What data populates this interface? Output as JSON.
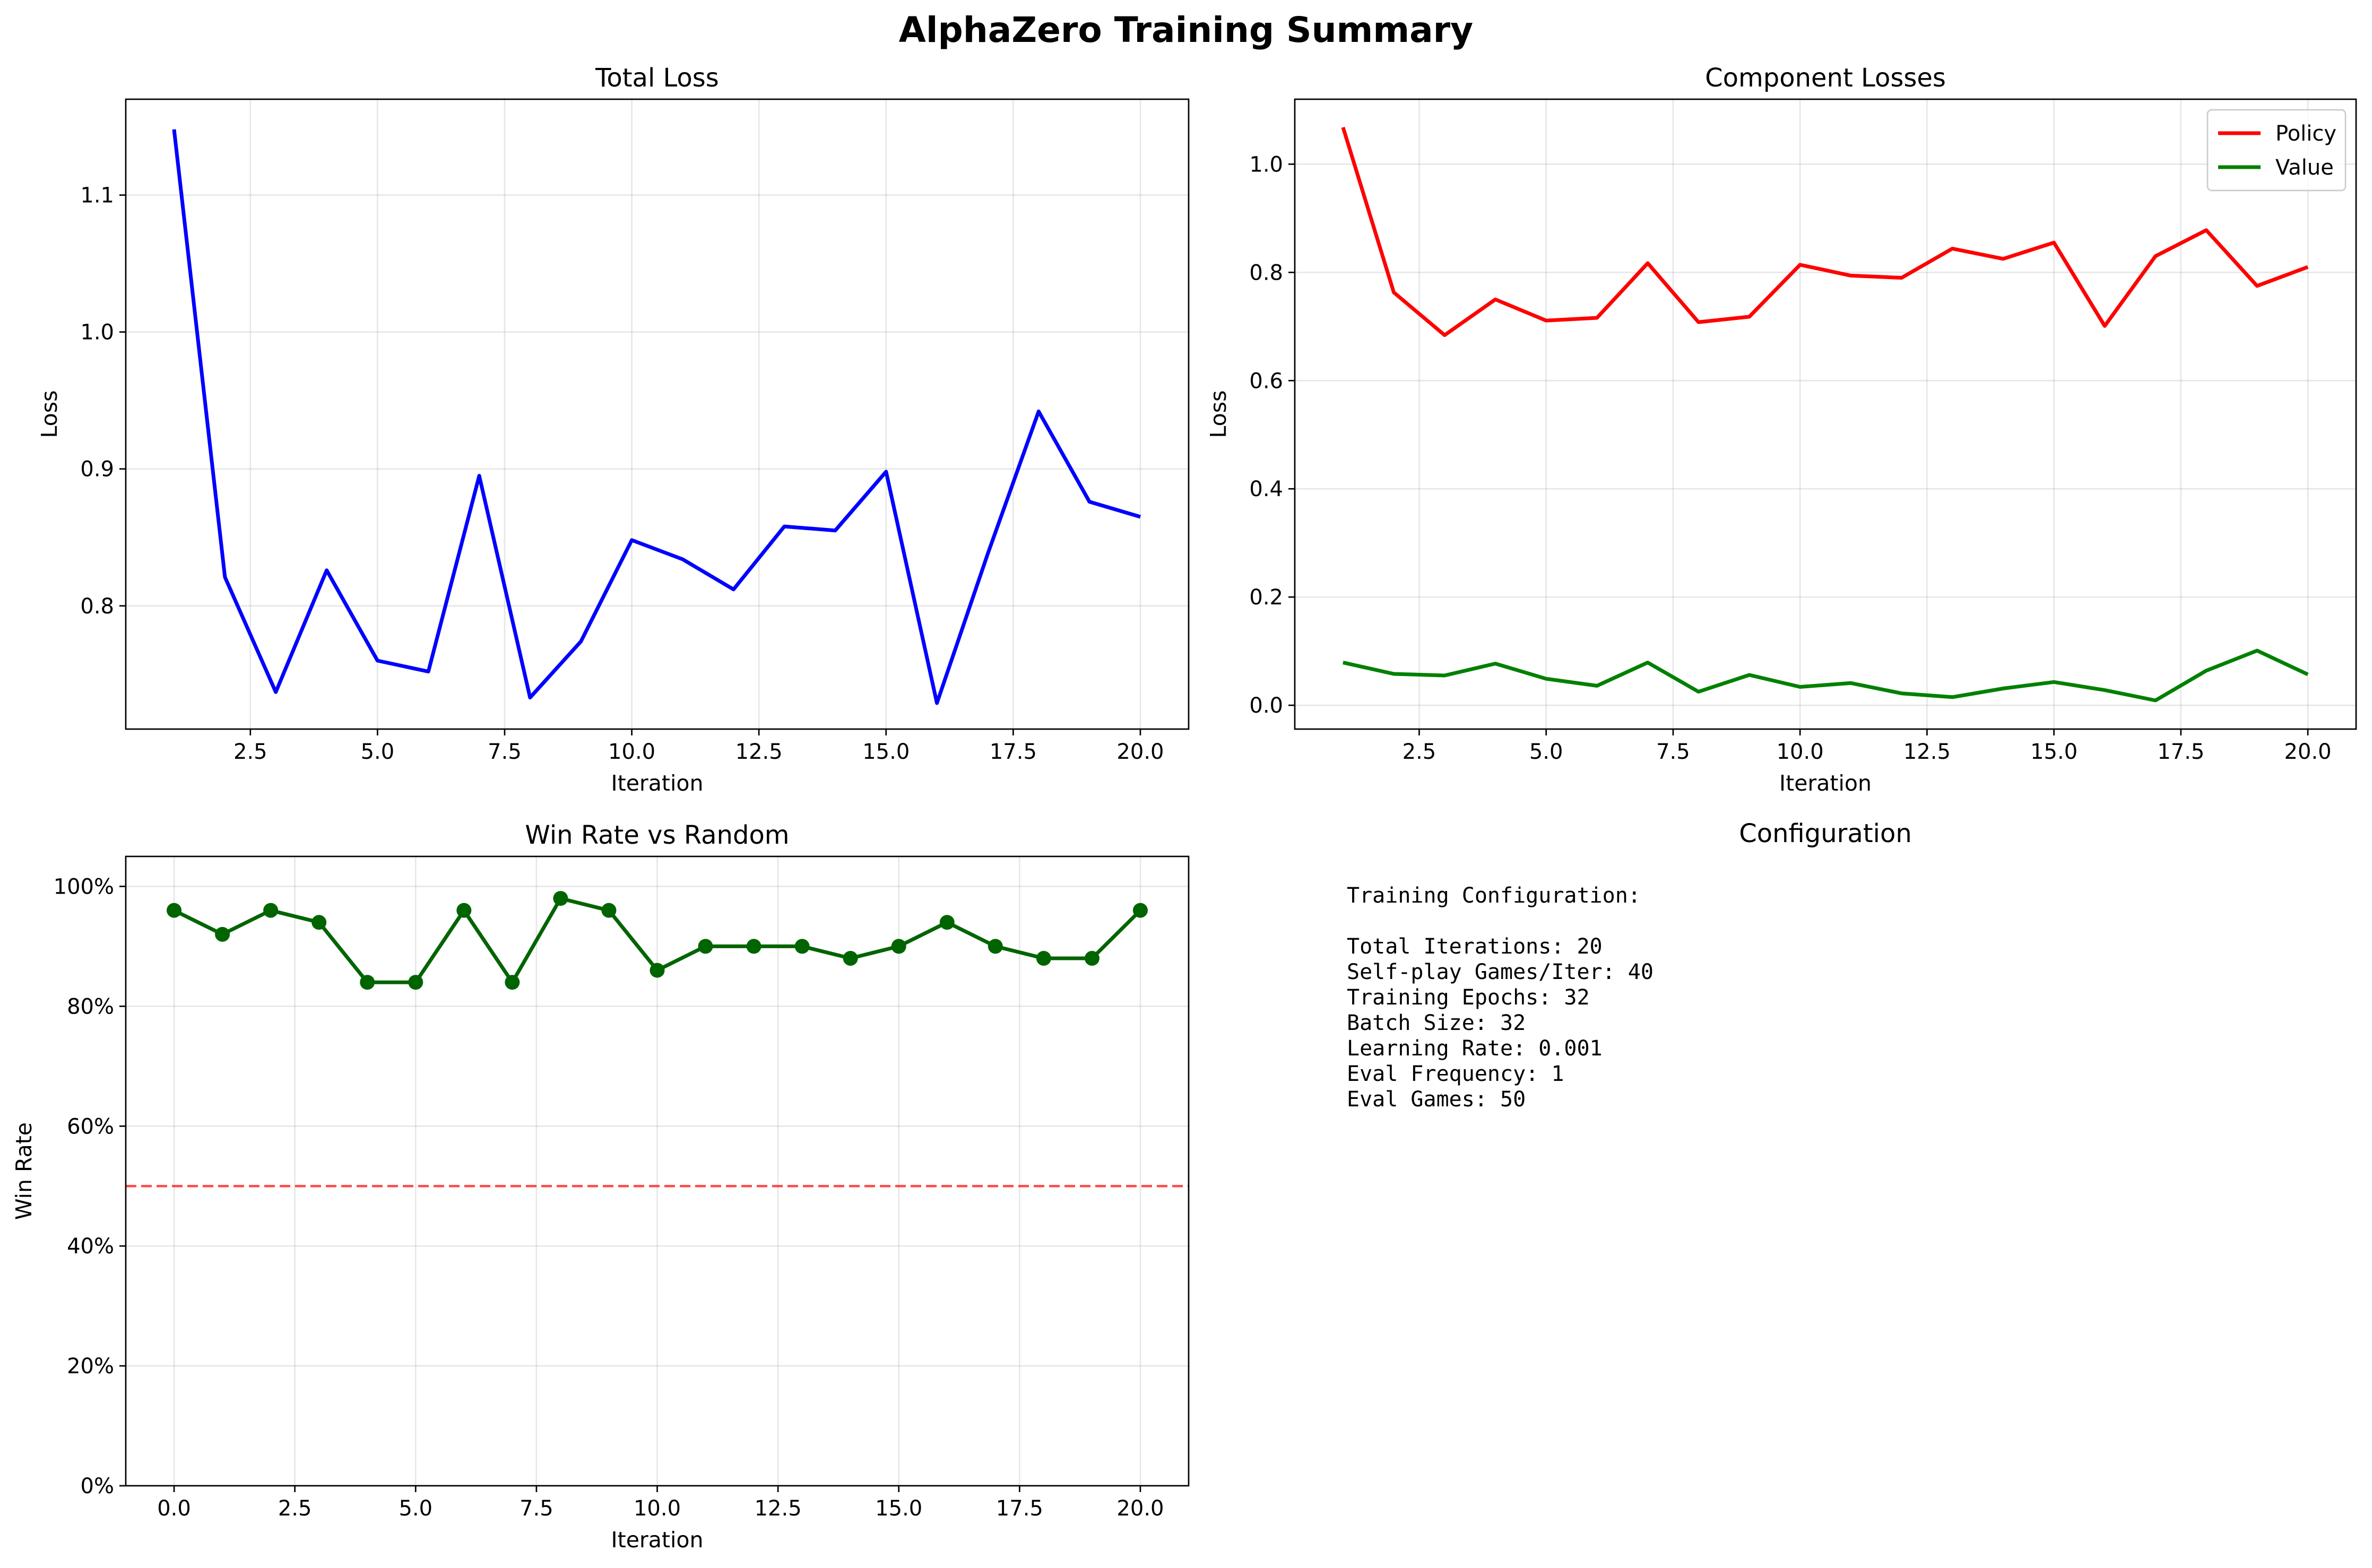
{
  "figure": {
    "suptitle": "AlphaZero Training Summary"
  },
  "chart_data": [
    {
      "id": "total_loss",
      "type": "line",
      "title": "Total Loss",
      "xlabel": "Iteration",
      "ylabel": "Loss",
      "xlim": [
        0.05,
        20.95
      ],
      "ylim": [
        0.71,
        1.17
      ],
      "xticks": [
        2.5,
        5.0,
        7.5,
        10.0,
        12.5,
        15.0,
        17.5,
        20.0
      ],
      "xtick_labels": [
        "2.5",
        "5.0",
        "7.5",
        "10.0",
        "12.5",
        "15.0",
        "17.5",
        "20.0"
      ],
      "yticks": [
        0.8,
        0.9,
        1.0,
        1.1
      ],
      "ytick_labels": [
        "0.8",
        "0.9",
        "1.0",
        "1.1"
      ],
      "grid": true,
      "x": [
        1,
        2,
        3,
        4,
        5,
        6,
        7,
        8,
        9,
        10,
        11,
        12,
        13,
        14,
        15,
        16,
        17,
        18,
        19,
        20
      ],
      "series": [
        {
          "color": "#0000ff",
          "values": [
            1.148,
            0.821,
            0.737,
            0.826,
            0.76,
            0.752,
            0.895,
            0.733,
            0.774,
            0.848,
            0.834,
            0.812,
            0.858,
            0.855,
            0.898,
            0.729,
            0.838,
            0.942,
            0.876,
            0.865
          ]
        }
      ]
    },
    {
      "id": "component_losses",
      "type": "line",
      "title": "Component Losses",
      "xlabel": "Iteration",
      "ylabel": "Loss",
      "xlim": [
        0.05,
        20.95
      ],
      "ylim": [
        -0.044,
        1.12
      ],
      "xticks": [
        2.5,
        5.0,
        7.5,
        10.0,
        12.5,
        15.0,
        17.5,
        20.0
      ],
      "xtick_labels": [
        "2.5",
        "5.0",
        "7.5",
        "10.0",
        "12.5",
        "15.0",
        "17.5",
        "20.0"
      ],
      "yticks": [
        0.0,
        0.2,
        0.4,
        0.6,
        0.8,
        1.0
      ],
      "ytick_labels": [
        "0.0",
        "0.2",
        "0.4",
        "0.6",
        "0.8",
        "1.0"
      ],
      "grid": true,
      "legend": "top-right",
      "x": [
        1,
        2,
        3,
        4,
        5,
        6,
        7,
        8,
        9,
        10,
        11,
        12,
        13,
        14,
        15,
        16,
        17,
        18,
        19,
        20
      ],
      "series": [
        {
          "name": "Policy",
          "color": "#ff0000",
          "values": [
            1.068,
            0.763,
            0.684,
            0.75,
            0.711,
            0.716,
            0.817,
            0.708,
            0.718,
            0.814,
            0.794,
            0.79,
            0.844,
            0.825,
            0.855,
            0.701,
            0.83,
            0.878,
            0.775,
            0.81
          ]
        },
        {
          "name": "Value",
          "color": "#008000",
          "values": [
            0.079,
            0.058,
            0.055,
            0.077,
            0.049,
            0.036,
            0.079,
            0.025,
            0.056,
            0.034,
            0.041,
            0.022,
            0.015,
            0.031,
            0.043,
            0.028,
            0.009,
            0.064,
            0.101,
            0.057
          ]
        }
      ]
    },
    {
      "id": "win_rate",
      "type": "line",
      "title": "Win Rate vs Random",
      "xlabel": "Iteration",
      "ylabel": "Win Rate",
      "xlim": [
        -1.0,
        21.0
      ],
      "ylim": [
        0.0,
        1.05
      ],
      "xticks": [
        0.0,
        2.5,
        5.0,
        7.5,
        10.0,
        12.5,
        15.0,
        17.5,
        20.0
      ],
      "xtick_labels": [
        "0.0",
        "2.5",
        "5.0",
        "7.5",
        "10.0",
        "12.5",
        "15.0",
        "17.5",
        "20.0"
      ],
      "yticks": [
        0.0,
        0.2,
        0.4,
        0.6,
        0.8,
        1.0
      ],
      "ytick_labels": [
        "0%",
        "20%",
        "40%",
        "60%",
        "80%",
        "100%"
      ],
      "grid": true,
      "markers": true,
      "reference_line": {
        "y": 0.5,
        "color": "#ff0000",
        "style": "dashed"
      },
      "x": [
        0,
        1,
        2,
        3,
        4,
        5,
        6,
        7,
        8,
        9,
        10,
        11,
        12,
        13,
        14,
        15,
        16,
        17,
        18,
        19,
        20
      ],
      "series": [
        {
          "color": "#006400",
          "values": [
            0.96,
            0.92,
            0.96,
            0.94,
            0.84,
            0.84,
            0.96,
            0.84,
            0.98,
            0.96,
            0.86,
            0.9,
            0.9,
            0.9,
            0.88,
            0.9,
            0.94,
            0.9,
            0.88,
            0.88,
            0.96
          ]
        }
      ]
    }
  ],
  "config_panel": {
    "title": "Configuration",
    "lines": [
      "Training Configuration:",
      "",
      "Total Iterations: 20",
      "Self-play Games/Iter: 40",
      "Training Epochs: 32",
      "Batch Size: 32",
      "Learning Rate: 0.001",
      "Eval Frequency: 1",
      "Eval Games: 50"
    ]
  }
}
